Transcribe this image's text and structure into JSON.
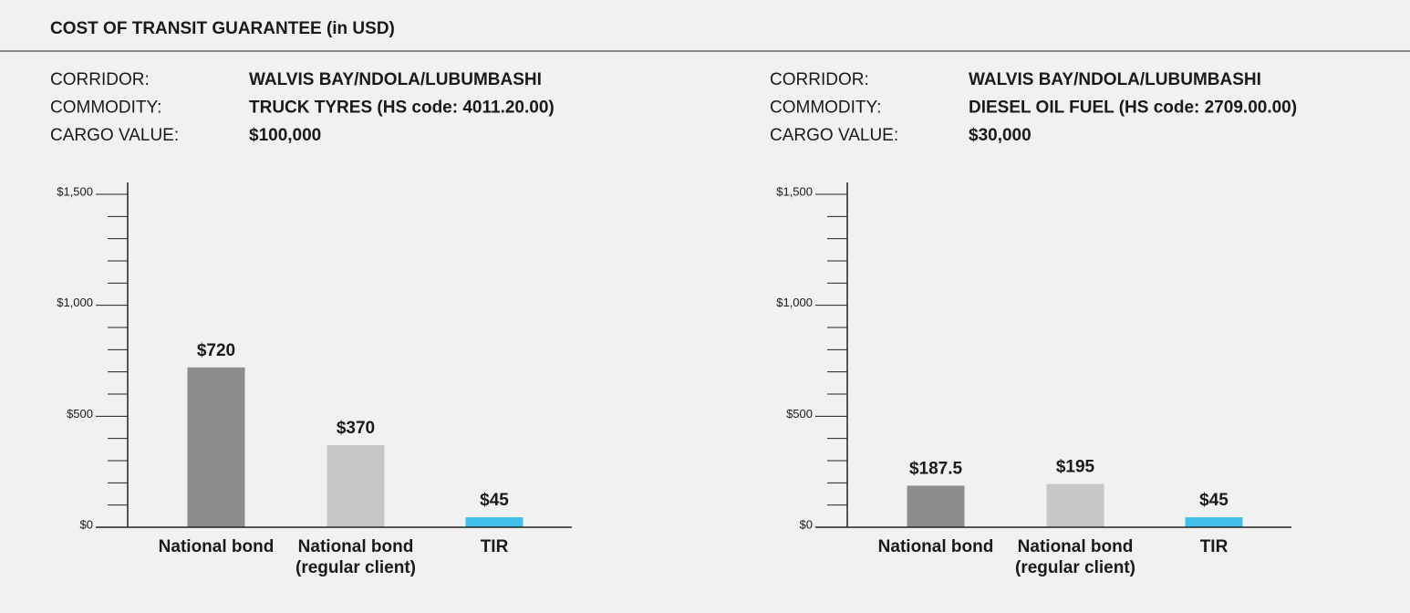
{
  "title": "COST OF TRANSIT GUARANTEE (in USD)",
  "chart_data": [
    {
      "type": "bar",
      "info": [
        {
          "label": "CORRIDOR:",
          "value": "WALVIS BAY/NDOLA/LUBUMBASHI"
        },
        {
          "label": "COMMODITY:",
          "value": "TRUCK TYRES (HS code: 4011.20.00)"
        },
        {
          "label": "CARGO VALUE:",
          "value": "$100,000"
        }
      ],
      "categories": [
        "National bond",
        "National bond (regular client)",
        "TIR"
      ],
      "values": [
        720,
        370,
        45
      ],
      "value_labels": [
        "$720",
        "$370",
        "$45"
      ],
      "colors": [
        "#8c8d8f",
        "#c6c7c8",
        "#3fc1ec"
      ],
      "ylim": [
        0,
        1500
      ],
      "yticks": [
        {
          "value": 0,
          "label": "$0"
        },
        {
          "value": 500,
          "label": "$500"
        },
        {
          "value": 1000,
          "label": "$1,000"
        },
        {
          "value": 1500,
          "label": "$1,500"
        }
      ]
    },
    {
      "type": "bar",
      "info": [
        {
          "label": "CORRIDOR:",
          "value": "WALVIS BAY/NDOLA/LUBUMBASHI"
        },
        {
          "label": "COMMODITY:",
          "value": "DIESEL OIL FUEL (HS code: 2709.00.00)"
        },
        {
          "label": "CARGO VALUE:",
          "value": "$30,000"
        }
      ],
      "categories": [
        "National bond",
        "National bond (regular client)",
        "TIR"
      ],
      "values": [
        187.5,
        195,
        45
      ],
      "value_labels": [
        "$187.5",
        "$195",
        "$45"
      ],
      "colors": [
        "#8c8d8f",
        "#c6c7c8",
        "#3fc1ec"
      ],
      "ylim": [
        0,
        1500
      ],
      "yticks": [
        {
          "value": 0,
          "label": "$0"
        },
        {
          "value": 500,
          "label": "$500"
        },
        {
          "value": 1000,
          "label": "$1,000"
        },
        {
          "value": 1500,
          "label": "$1,500"
        }
      ]
    }
  ]
}
